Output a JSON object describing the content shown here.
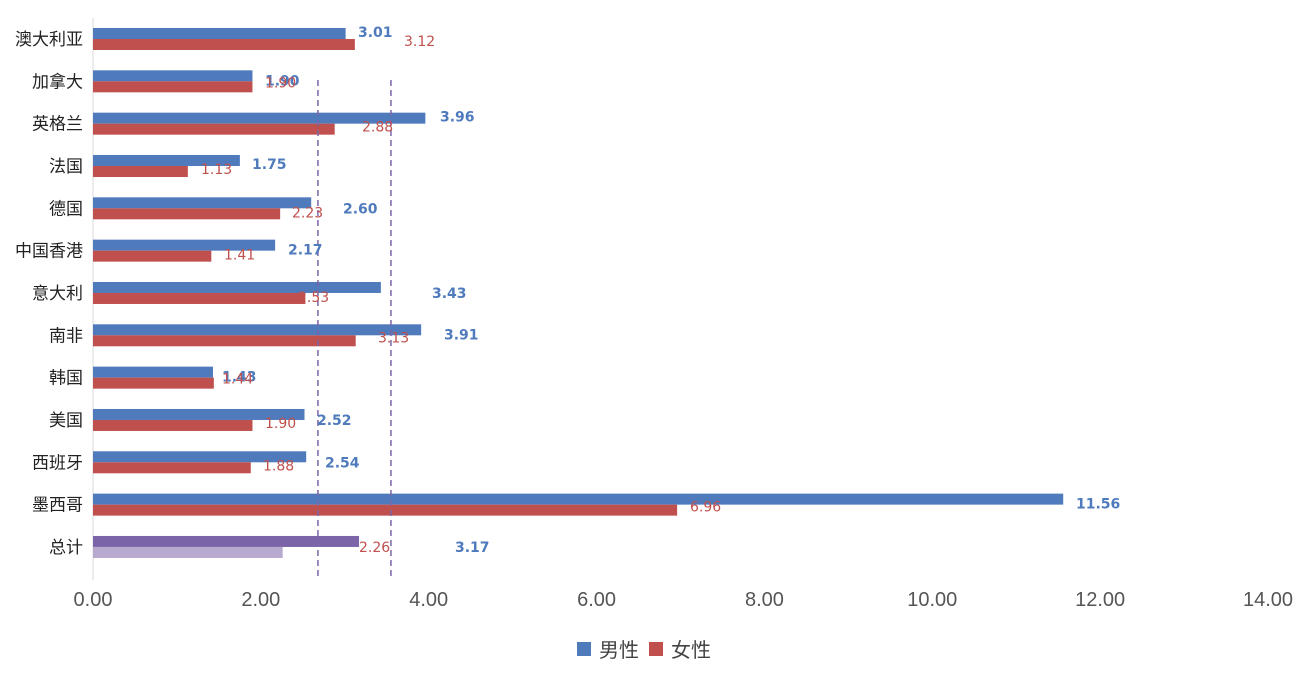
{
  "chart_data": {
    "type": "bar",
    "orientation": "horizontal",
    "categories": [
      "澳大利亚",
      "加拿大",
      "英格兰",
      "法国",
      "德国",
      "中国香港",
      "意大利",
      "南非",
      "韩国",
      "美国",
      "西班牙",
      "墨西哥",
      "总计"
    ],
    "series": [
      {
        "name": "男性",
        "color": "#4f7bbd",
        "values": [
          3.01,
          1.9,
          3.96,
          1.75,
          2.6,
          2.17,
          3.43,
          3.91,
          1.43,
          2.52,
          2.54,
          11.56,
          3.17
        ],
        "labels": [
          "3.01",
          "1.90",
          "3.96",
          "1.75",
          "2.60",
          "2.17",
          "3.43",
          "3.91",
          "1.43",
          "2.52",
          "2.54",
          "11.56",
          "3.17"
        ]
      },
      {
        "name": "女性",
        "color": "#c0504d",
        "values": [
          3.12,
          1.9,
          2.88,
          1.13,
          2.23,
          1.41,
          2.53,
          3.13,
          1.44,
          1.9,
          1.88,
          6.96,
          2.26
        ],
        "labels": [
          "3.12",
          "1.90",
          "2.88",
          "1.13",
          "2.23",
          "1.41",
          "2.53",
          "3.13",
          "1.44",
          "1.90",
          "1.88",
          "6.96",
          "2.26"
        ]
      }
    ],
    "total_bar_colors": {
      "male": "#7b65a8",
      "female": "#b8a9cf"
    },
    "xlim": [
      0,
      14
    ],
    "xticks": [
      "0.00",
      "2.00",
      "4.00",
      "6.00",
      "8.00",
      "10.00",
      "12.00",
      "14.00"
    ],
    "reference_lines": [
      {
        "value": 2.68,
        "style": "dashed",
        "color": "#7b65a8"
      },
      {
        "value": 3.55,
        "style": "dashed",
        "color": "#7b65a8"
      }
    ],
    "title": "",
    "xlabel": "",
    "ylabel": "",
    "grid": false,
    "legend_position": "bottom"
  },
  "legend": {
    "male_label": "男性",
    "female_label": "女性",
    "male_color": "#4f7bbd",
    "female_color": "#c0504d"
  }
}
